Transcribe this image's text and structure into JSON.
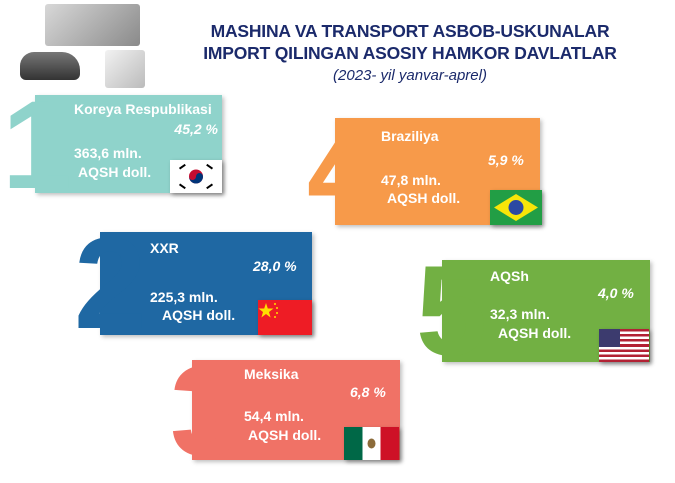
{
  "header": {
    "title_line1": "MASHINA VA  TRANSPORT ASBOB-USKUNALAR",
    "title_line2": "IMPORT QILINGAN ASOSIY HAMKOR DAVLATLAR",
    "subtitle": "(2023- yil yanvar-aprel)"
  },
  "countries": [
    {
      "rank": "1",
      "name": "Koreya Respublikasi",
      "share": "45,2 %",
      "value": "363,6 mln.",
      "unit": "AQSH doll.",
      "color": "#8fd3cb",
      "flag": "south-korea-flag-icon"
    },
    {
      "rank": "2",
      "name": "XXR",
      "share": "28,0 %",
      "value": "225,3 mln.",
      "unit": "AQSH doll.",
      "color": "#1f68a3",
      "flag": "china-flag-icon"
    },
    {
      "rank": "3",
      "name": "Meksika",
      "share": "6,8 %",
      "value": "54,4 mln.",
      "unit": "AQSH doll.",
      "color": "#f07266",
      "flag": "mexico-flag-icon"
    },
    {
      "rank": "4",
      "name": "Braziliya",
      "share": "5,9 %",
      "value": "47,8 mln.",
      "unit": "AQSH doll.",
      "color": "#f79a4a",
      "flag": "brazil-flag-icon"
    },
    {
      "rank": "5",
      "name": "AQSh",
      "share": "4,0 %",
      "value": "32,3 mln.",
      "unit": "AQSH doll.",
      "color": "#72b043",
      "flag": "usa-flag-icon"
    }
  ]
}
